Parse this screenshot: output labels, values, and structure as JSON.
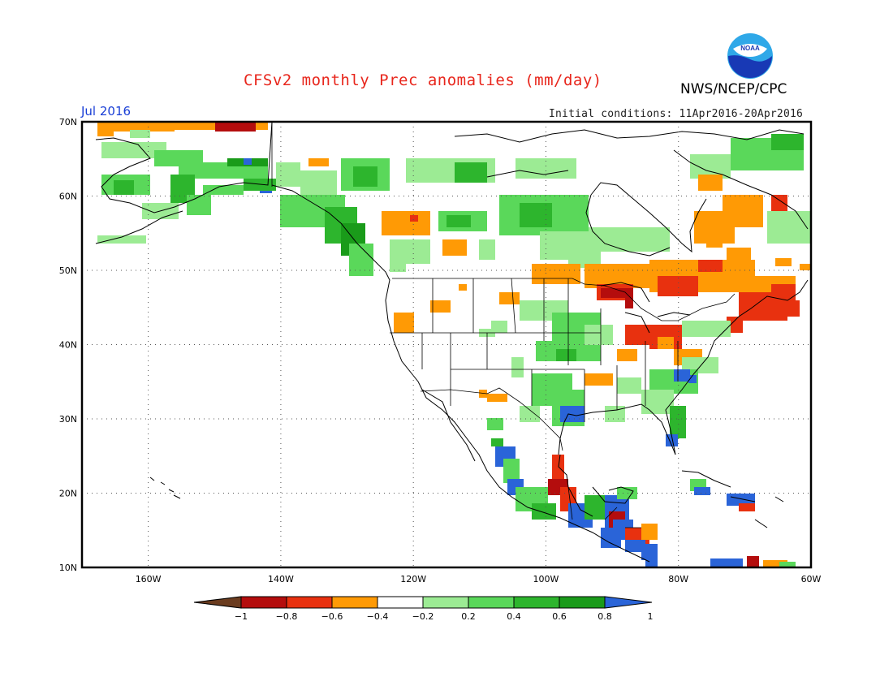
{
  "header": {
    "title": "CFSv2 monthly Prec anomalies (mm/day)",
    "agency": "NWS/NCEP/CPC",
    "logo_text": "NOAA",
    "period": "Jul 2016",
    "initial_conditions": "Initial conditions: 11Apr2016-20Apr2016"
  },
  "map": {
    "projection": "cylindrical",
    "lon_range": [
      -170,
      -60
    ],
    "lat_range": [
      10,
      70
    ],
    "lat_ticks": [
      "10N",
      "20N",
      "30N",
      "40N",
      "50N",
      "60N",
      "70N"
    ],
    "lon_ticks": [
      "160W",
      "140W",
      "120W",
      "100W",
      "80W",
      "60W"
    ],
    "gridlines": "dotted"
  },
  "colorbar": {
    "labels": [
      "-1",
      "-0.8",
      "-0.6",
      "-0.4",
      "-0.2",
      "0.2",
      "0.4",
      "0.6",
      "0.8",
      "1"
    ],
    "colors": [
      "#6b3c1f",
      "#b40d0d",
      "#e8310f",
      "#ff9a05",
      "#ffffff",
      "#9ceb94",
      "#5ad85a",
      "#2db52d",
      "#1a9b1a",
      "#2a64d8"
    ]
  }
}
